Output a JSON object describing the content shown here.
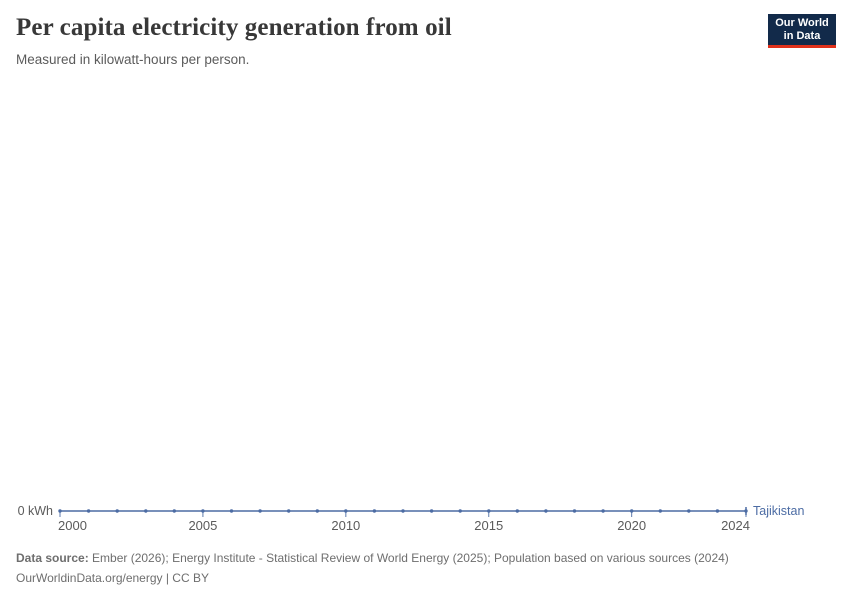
{
  "header": {
    "title": "Per capita electricity generation from oil",
    "subtitle": "Measured in kilowatt-hours per person."
  },
  "logo": {
    "line1": "Our World",
    "line2": "in Data",
    "bg_color": "#122A4A",
    "bar_color": "#E0311B"
  },
  "chart_data": {
    "type": "line",
    "title": "Per capita electricity generation from oil",
    "unit": "kWh",
    "x": [
      2000,
      2001,
      2002,
      2003,
      2004,
      2005,
      2006,
      2007,
      2008,
      2009,
      2010,
      2011,
      2012,
      2013,
      2014,
      2015,
      2016,
      2017,
      2018,
      2019,
      2020,
      2021,
      2022,
      2023,
      2024
    ],
    "series": [
      {
        "name": "Tajikistan",
        "color": "#4C6CA4",
        "values": [
          0,
          0,
          0,
          0,
          0,
          0,
          0,
          0,
          0,
          0,
          0,
          0,
          0,
          0,
          0,
          0,
          0,
          0,
          0,
          0,
          0,
          0,
          0,
          0,
          0
        ]
      }
    ],
    "x_ticks": [
      "2000",
      "2005",
      "2010",
      "2015",
      "2020",
      "2024"
    ],
    "xlim": [
      2000,
      2024
    ],
    "ylim": [
      0,
      0
    ],
    "y_axis_label": "0 kWh",
    "grid": false,
    "legend_position": "end-of-line"
  },
  "footer": {
    "source_label": "Data source:",
    "source_text": " Ember (2026); Energy Institute - Statistical Review of World Energy (2025); Population based on various sources (2024)",
    "license_line": "OurWorldinData.org/energy | CC BY"
  }
}
